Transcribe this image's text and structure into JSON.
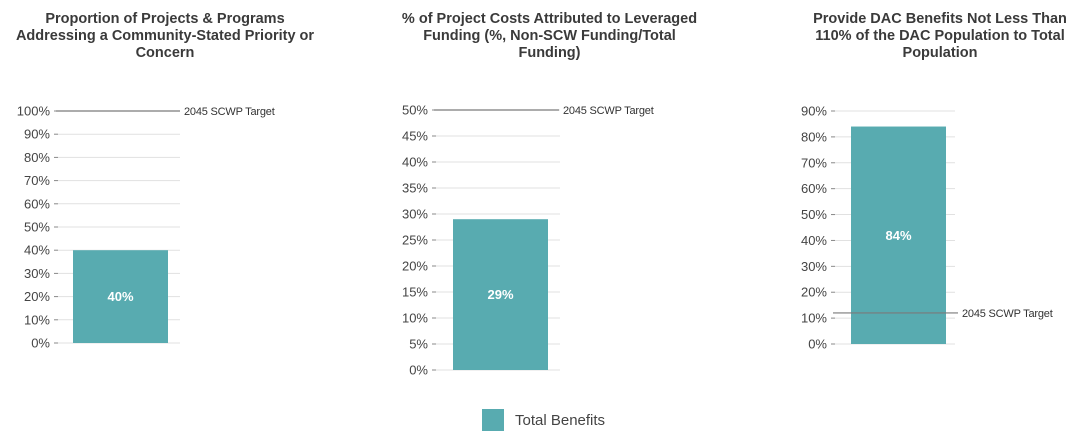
{
  "colors": {
    "bar": "#58abb0",
    "gridline": "#e1e1e1",
    "target_line": "#7a7a7a"
  },
  "legend": {
    "label": "Total Benefits"
  },
  "chart_data": [
    {
      "type": "bar",
      "title": "Proportion of Projects & Programs Addressing a Community-Stated Priority or Concern",
      "categories": [
        "Total Benefits"
      ],
      "series": [
        {
          "name": "Total Benefits",
          "values": [
            40
          ]
        }
      ],
      "data_labels": [
        "40%"
      ],
      "ylim": [
        0,
        100
      ],
      "yticks": [
        0,
        10,
        20,
        30,
        40,
        50,
        60,
        70,
        80,
        90,
        100
      ],
      "ytick_labels": [
        "0%",
        "10%",
        "20%",
        "30%",
        "40%",
        "50%",
        "60%",
        "70%",
        "80%",
        "90%",
        "100%"
      ],
      "target": {
        "value": 100,
        "label": "2045 SCWP Target"
      },
      "grid": true
    },
    {
      "type": "bar",
      "title": "% of Project Costs Attributed to Leveraged Funding (%, Non-SCW Funding/Total Funding)",
      "categories": [
        "Total Benefits"
      ],
      "series": [
        {
          "name": "Total Benefits",
          "values": [
            29
          ]
        }
      ],
      "data_labels": [
        "29%"
      ],
      "ylim": [
        0,
        50
      ],
      "yticks": [
        0,
        5,
        10,
        15,
        20,
        25,
        30,
        35,
        40,
        45,
        50
      ],
      "ytick_labels": [
        "0%",
        "5%",
        "10%",
        "15%",
        "20%",
        "25%",
        "30%",
        "35%",
        "40%",
        "45%",
        "50%"
      ],
      "target": {
        "value": 50,
        "label": "2045 SCWP Target"
      },
      "grid": true
    },
    {
      "type": "bar",
      "title": "Provide DAC Benefits Not Less Than 110% of the DAC Population to Total Population",
      "categories": [
        "Total Benefits"
      ],
      "series": [
        {
          "name": "Total Benefits",
          "values": [
            84
          ]
        }
      ],
      "data_labels": [
        "84%"
      ],
      "ylim": [
        0,
        90
      ],
      "yticks": [
        0,
        10,
        20,
        30,
        40,
        50,
        60,
        70,
        80,
        90
      ],
      "ytick_labels": [
        "0%",
        "10%",
        "20%",
        "30%",
        "40%",
        "50%",
        "60%",
        "70%",
        "80%",
        "90%"
      ],
      "target": {
        "value": 12,
        "label": "2045 SCWP Target"
      },
      "grid": true
    }
  ]
}
